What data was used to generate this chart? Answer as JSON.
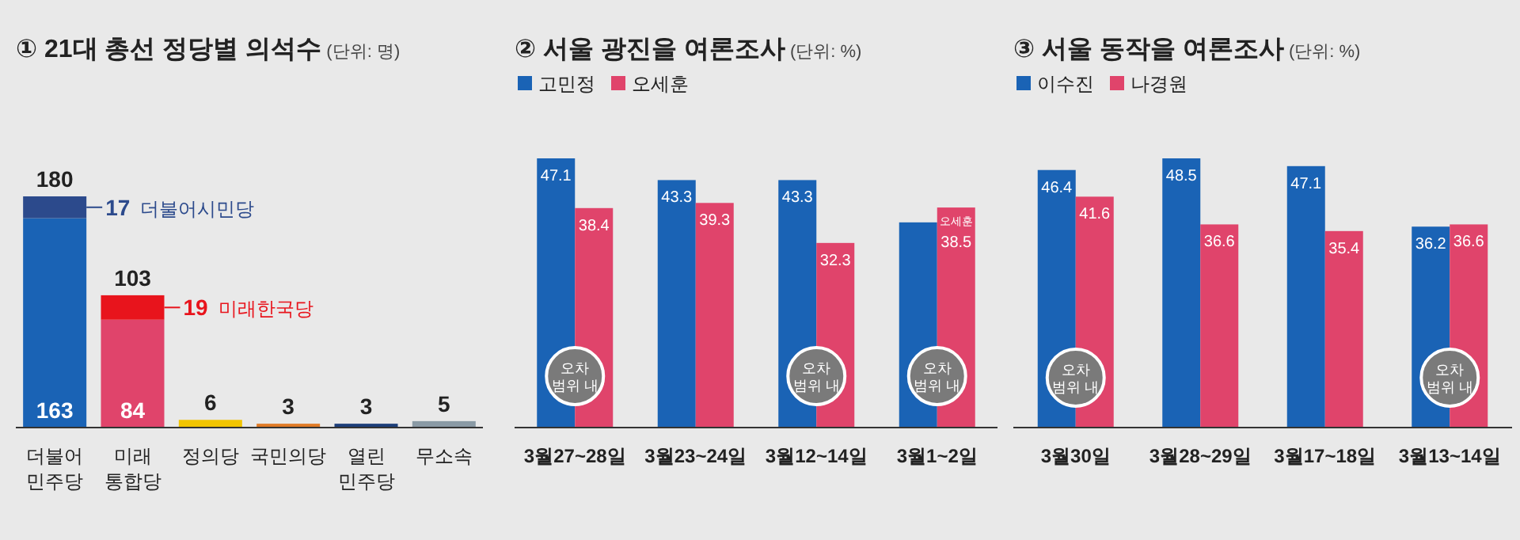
{
  "chart_data": [
    {
      "type": "bar",
      "title": "① 21대 총선 정당별 의석수",
      "subtitle": "(단위: 명)",
      "stacked": true,
      "categories": [
        "더불어 민주당",
        "미래 통합당",
        "정의당",
        "국민의당",
        "열린 민주당",
        "무소속"
      ],
      "series": [
        {
          "colors": [
            "#1a63b5",
            "#e0446b",
            "#f2c500",
            "#e07b26",
            "#1d3f7a",
            "#8a9aa5"
          ],
          "values": [
            163,
            84,
            6,
            3,
            3,
            5
          ],
          "value_labels": [
            "163",
            "84",
            "6",
            "3",
            "3",
            "5"
          ]
        },
        {
          "colors": [
            "#2c4a8c",
            "#e8141c",
            null,
            null,
            null,
            null
          ],
          "values": [
            17,
            19,
            null,
            null,
            null,
            null
          ],
          "value_labels": [
            "17",
            "19",
            null,
            null,
            null,
            null
          ]
        }
      ],
      "totals": [
        "180",
        "103",
        null,
        null,
        null,
        null
      ],
      "annotations": [
        "더불어시민당",
        "미래한국당"
      ]
    },
    {
      "type": "bar",
      "title": "② 서울 광진을 여론조사",
      "subtitle": "(단위: %)",
      "legend": "top left",
      "categories": [
        "3월27~28일",
        "3월23~24일",
        "3월12~14일",
        "3월1~2일"
      ],
      "series": [
        {
          "name": "고민정",
          "color": "#1a63b5",
          "values": [
            47.1,
            43.3,
            43.3,
            35.9
          ],
          "value_labels": [
            "47.1",
            "43.3",
            "43.3",
            null
          ]
        },
        {
          "name": "오세훈",
          "color": "#e0446b",
          "values": [
            38.4,
            39.3,
            32.3,
            38.5
          ],
          "value_labels": [
            "38.4",
            "39.3",
            "32.3",
            "38.5"
          ]
        }
      ],
      "annotations": [
        {
          "text": "오차 범위 내",
          "x": "3월27~28일",
          "y": 9
        },
        {
          "text": "오차 범위 내",
          "x": "3월12~14일",
          "y": 9
        },
        {
          "text": "오차 범위 내",
          "x": "3월1~2일",
          "y": 9
        },
        {
          "text": "오세훈",
          "x": "3월1~2일",
          "y": 38.5
        }
      ]
    },
    {
      "type": "bar",
      "title": "③ 서울 동작을 여론조사",
      "subtitle": "(단위: %)",
      "legend": "top left",
      "categories": [
        "3월30일",
        "3월28~29일",
        "3월17~18일",
        "3월13~14일"
      ],
      "series": [
        {
          "name": "이수진",
          "color": "#1a63b5",
          "values": [
            46.4,
            48.5,
            47.1,
            36.2
          ],
          "value_labels": [
            "46.4",
            "48.5",
            "47.1",
            "36.2"
          ]
        },
        {
          "name": "나경원",
          "color": "#e0446b",
          "values": [
            41.6,
            36.6,
            35.4,
            36.6
          ],
          "value_labels": [
            "41.6",
            "36.6",
            "35.4",
            "36.6"
          ]
        }
      ],
      "annotations": [
        {
          "text": "오차 범위 내",
          "x": "3월30일",
          "y": 9
        },
        {
          "text": "오차 범위 내",
          "x": "3월13~14일",
          "y": 9
        }
      ]
    }
  ]
}
